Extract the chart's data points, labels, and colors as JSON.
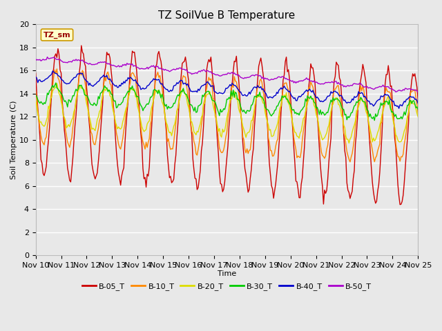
{
  "title": "TZ SoilVue B Temperature",
  "xlabel": "Time",
  "ylabel": "Soil Temperature (C)",
  "ylim": [
    0,
    20
  ],
  "yticks": [
    0,
    2,
    4,
    6,
    8,
    10,
    12,
    14,
    16,
    18,
    20
  ],
  "date_labels": [
    "Nov 10",
    "Nov 11",
    "Nov 12",
    "Nov 13",
    "Nov 14",
    "Nov 15",
    "Nov 16",
    "Nov 17",
    "Nov 18",
    "Nov 19",
    "Nov 20",
    "Nov 21",
    "Nov 22",
    "Nov 23",
    "Nov 24",
    "Nov 25"
  ],
  "legend_entries": [
    "B-05_T",
    "B-10_T",
    "B-20_T",
    "B-30_T",
    "B-40_T",
    "B-50_T"
  ],
  "colors": {
    "B-05_T": "#cc0000",
    "B-10_T": "#ff8800",
    "B-20_T": "#dddd00",
    "B-30_T": "#00cc00",
    "B-40_T": "#0000cc",
    "B-50_T": "#aa00cc"
  },
  "annotation_text": "TZ_sm",
  "annotation_color": "#990000",
  "annotation_bg": "#ffffcc",
  "annotation_border": "#cc9900",
  "plot_bg": "#e8e8e8",
  "grid_color": "#ffffff",
  "title_fontsize": 11,
  "axis_fontsize": 8,
  "tick_fontsize": 8,
  "legend_fontsize": 8
}
